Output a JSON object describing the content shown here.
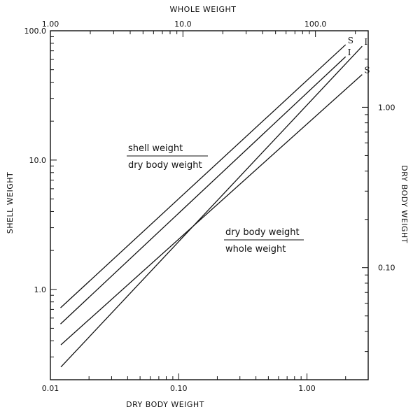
{
  "chart_data": {
    "type": "line",
    "scale": "log-log",
    "grid": false,
    "axes": {
      "bottom": {
        "label": "DRY BODY WEIGHT",
        "min": 0.01,
        "max": 3.0,
        "ticks": [
          0.01,
          0.1,
          1.0
        ],
        "tick_labels": [
          "0.01",
          "0.10",
          "1.00"
        ]
      },
      "left": {
        "label": "SHELL WEIGHT",
        "min": 0.2,
        "max": 100.0,
        "ticks": [
          1.0,
          10.0,
          100.0
        ],
        "tick_labels": [
          "1.0",
          "10.0",
          "100.0"
        ]
      },
      "top": {
        "label": "WHOLE WEIGHT",
        "min": 1.0,
        "max": 250.0,
        "ticks": [
          1.0,
          10.0,
          100.0
        ],
        "tick_labels": [
          "1.00",
          "10.0",
          "100.0"
        ]
      },
      "right": {
        "label": "DRY BODY WEIGHT",
        "min": 0.02,
        "max": 3.0,
        "ticks": [
          0.1,
          1.0
        ],
        "tick_labels": [
          "0.10",
          "1.00"
        ]
      }
    },
    "annotations": [
      {
        "numerator": "shell weight",
        "denominator": "dry body weight"
      },
      {
        "numerator": "dry body weight",
        "denominator": "whole weight"
      }
    ],
    "series": [
      {
        "name": "S",
        "group": "shell weight / dry body weight",
        "axes": "bottom-left",
        "points": [
          {
            "x": 0.012,
            "y": 0.72
          },
          {
            "x": 2.0,
            "y": 78.0
          }
        ]
      },
      {
        "name": "I",
        "group": "shell weight / dry body weight",
        "axes": "bottom-left",
        "points": [
          {
            "x": 0.012,
            "y": 0.54
          },
          {
            "x": 2.0,
            "y": 63.0
          }
        ]
      },
      {
        "name": "I",
        "group": "dry body weight / whole weight",
        "axes": "top-right",
        "points": [
          {
            "x": 1.2,
            "y": 0.024
          },
          {
            "x": 225.0,
            "y": 2.4
          }
        ]
      },
      {
        "name": "S",
        "group": "dry body weight / whole weight",
        "axes": "top-right",
        "points": [
          {
            "x": 1.2,
            "y": 0.033
          },
          {
            "x": 225.0,
            "y": 1.6
          }
        ]
      }
    ]
  }
}
